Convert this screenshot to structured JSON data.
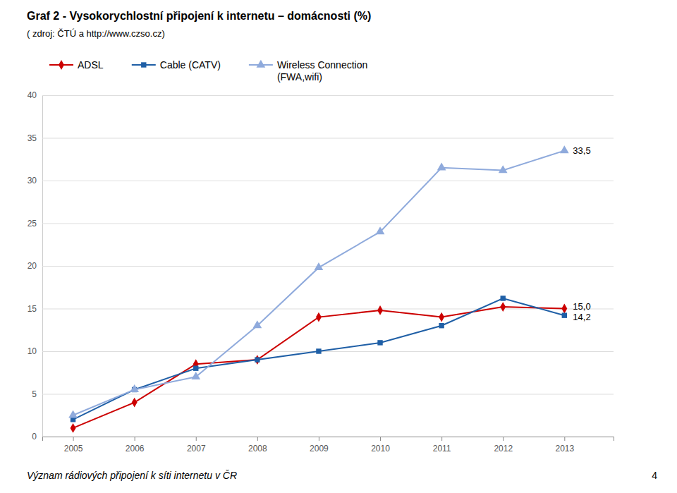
{
  "chart_data": {
    "type": "line",
    "title": "Graf 2 - Vysokorychlostní připojení k internetu – domácnosti (%)",
    "subtitle": "( zdroj: ČTÚ a http://www.czso.cz)",
    "footer": "Význam rádiových připojení k síti internetu v ČR",
    "page_number": "4",
    "x": [
      2005,
      2006,
      2007,
      2008,
      2009,
      2010,
      2011,
      2012,
      2013
    ],
    "series": [
      {
        "name": "ADSL",
        "color": "#cc0000",
        "marker": "diamond",
        "values": [
          1.0,
          4.0,
          8.5,
          9.0,
          14.0,
          14.8,
          14.0,
          15.2,
          15.0
        ]
      },
      {
        "name": "Cable (CATV)",
        "color": "#1f5fa6",
        "marker": "square",
        "values": [
          2.0,
          5.5,
          8.0,
          9.0,
          10.0,
          11.0,
          13.0,
          16.2,
          14.2
        ]
      },
      {
        "name": "Wireless Connection\n(FWA,wifi)",
        "color": "#8faadc",
        "marker": "triangle",
        "values": [
          2.5,
          5.5,
          7.0,
          13.0,
          19.8,
          24.0,
          31.5,
          31.2,
          33.5
        ]
      }
    ],
    "annotations": [
      {
        "text": "33,5",
        "x": 2013,
        "y": 33.5
      },
      {
        "text": "15,0",
        "x": 2013,
        "y": 15.0
      },
      {
        "text": "14,2",
        "x": 2013,
        "y": 14.2
      }
    ],
    "xlim": [
      2004.5,
      2013.8
    ],
    "xticks": [
      2005,
      2006,
      2007,
      2008,
      2009,
      2010,
      2011,
      2012,
      2013
    ],
    "ylim": [
      0,
      40
    ],
    "yticks": [
      0,
      5,
      10,
      15,
      20,
      25,
      30,
      35,
      40
    ],
    "grid": true
  }
}
